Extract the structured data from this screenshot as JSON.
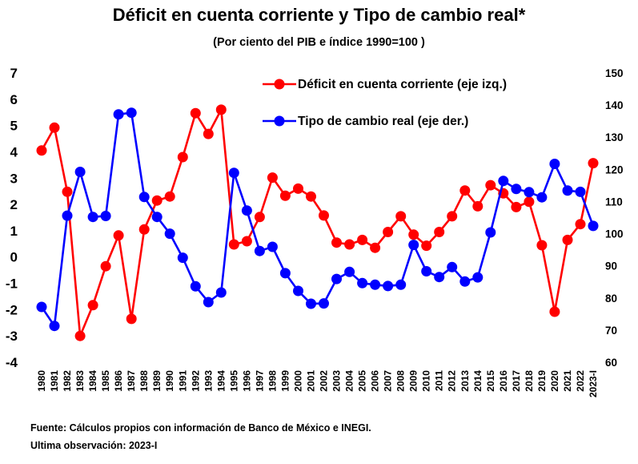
{
  "chart_data": {
    "type": "line",
    "title": "Déficit en cuenta corriente y Tipo de cambio real*",
    "subtitle": "(Por ciento del PIB e índice 1990=100 )",
    "categories": [
      "1980",
      "1981",
      "1982",
      "1983",
      "1984",
      "1985",
      "1986",
      "1987",
      "1988",
      "1989",
      "1990",
      "1991",
      "1992",
      "1993",
      "1994",
      "1995",
      "1996",
      "1997",
      "1998",
      "1999",
      "2000",
      "2001",
      "2002",
      "2003",
      "2004",
      "2005",
      "2006",
      "2007",
      "2008",
      "2009",
      "2010",
      "2011",
      "2012",
      "2013",
      "2014",
      "2015",
      "2016",
      "2017",
      "2018",
      "2019",
      "2020",
      "2021",
      "2022",
      "2023-I"
    ],
    "y_left": {
      "min": -4,
      "max": 7,
      "step": 1,
      "ticks": [
        "-4",
        "-3",
        "-2",
        "-1",
        "0",
        "1",
        "2",
        "3",
        "4",
        "5",
        "6",
        "7"
      ]
    },
    "y_right": {
      "min": 60,
      "max": 150,
      "step": 10,
      "ticks": [
        "60",
        "70",
        "80",
        "90",
        "100",
        "110",
        "120",
        "130",
        "140",
        "150"
      ]
    },
    "grid": false,
    "legend_position": "top-right",
    "series": [
      {
        "name": "Déficit en cuenta corriente (eje izq.)",
        "color": "#ff0000",
        "axis": "left",
        "values": [
          4.05,
          4.92,
          2.48,
          -3.0,
          -1.83,
          -0.35,
          0.82,
          -2.35,
          1.05,
          2.15,
          2.3,
          3.8,
          5.47,
          4.68,
          5.6,
          0.48,
          0.6,
          1.52,
          3.02,
          2.33,
          2.6,
          2.3,
          1.58,
          0.55,
          0.48,
          0.65,
          0.35,
          0.95,
          1.55,
          0.85,
          0.43,
          0.95,
          1.55,
          2.53,
          1.93,
          2.73,
          2.42,
          1.9,
          2.1,
          0.45,
          -2.08,
          0.65,
          1.25,
          3.57
        ]
      },
      {
        "name": "Tipo de cambio real (eje der.)",
        "color": "#0000ff",
        "axis": "right",
        "values": [
          77.2,
          71.3,
          105.6,
          119.2,
          105.2,
          105.5,
          137.1,
          137.6,
          111.4,
          105.2,
          100.0,
          92.5,
          83.6,
          78.7,
          81.7,
          118.9,
          107.2,
          94.6,
          95.9,
          87.7,
          82.2,
          78.2,
          78.3,
          85.9,
          88.1,
          84.6,
          84.1,
          83.7,
          84.1,
          96.5,
          88.3,
          86.5,
          89.6,
          85.1,
          86.4,
          100.4,
          116.4,
          113.9,
          112.9,
          111.3,
          121.7,
          113.4,
          113.0,
          102.4
        ]
      }
    ]
  },
  "notes": {
    "source": "Fuente: Cálculos propios con información de Banco de México e INEGI.",
    "last_observation": "Ultima observación: 2023-I"
  }
}
